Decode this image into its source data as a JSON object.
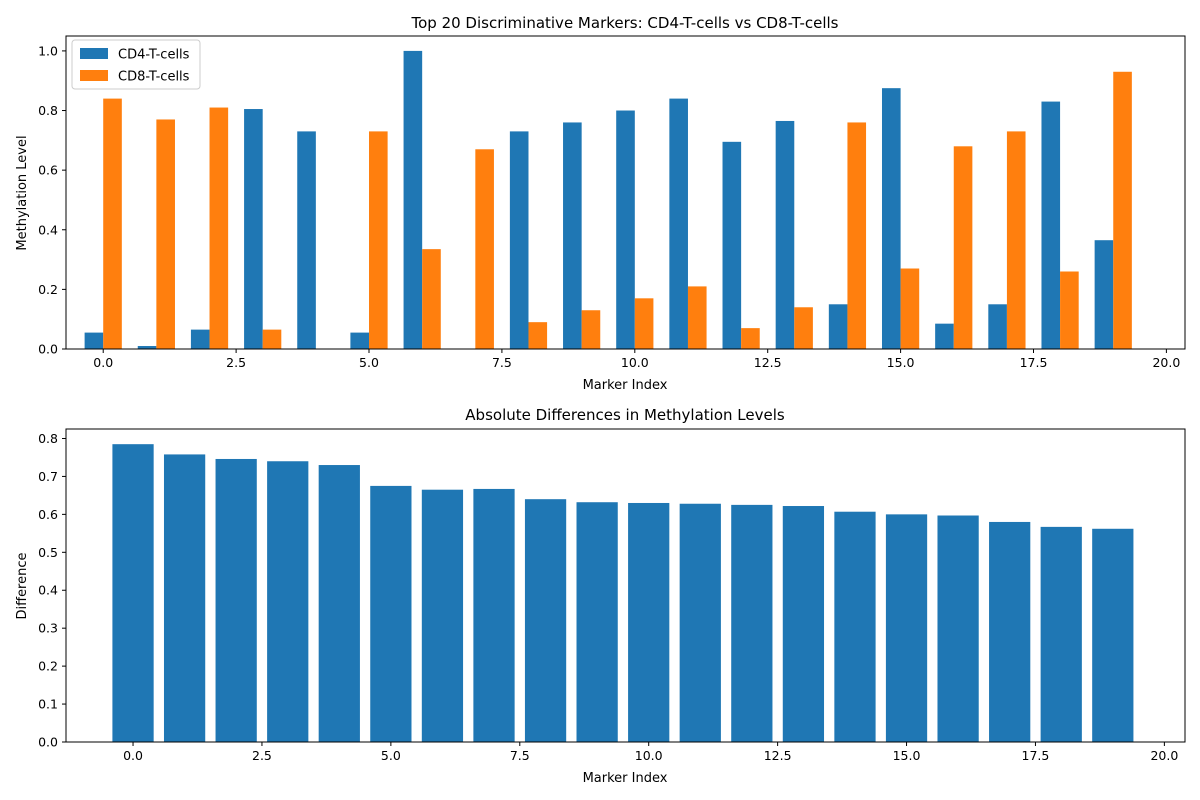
{
  "chart_data": [
    {
      "type": "bar",
      "title": "Top 20 Discriminative Markers: CD4-T-cells vs CD8-T-cells",
      "xlabel": "Marker Index",
      "ylabel": "Methylation Level",
      "xlim": [
        -0.7,
        20.35
      ],
      "ylim": [
        0,
        1.05
      ],
      "xticks": [
        0.0,
        2.5,
        5.0,
        7.5,
        10.0,
        12.5,
        15.0,
        17.5,
        20.0
      ],
      "yticks": [
        0.0,
        0.2,
        0.4,
        0.6,
        0.8,
        1.0
      ],
      "grid": false,
      "legend_position": "top-left",
      "x": [
        0,
        1,
        2,
        3,
        4,
        5,
        6,
        7,
        8,
        9,
        10,
        11,
        12,
        13,
        14,
        15,
        16,
        17,
        18,
        19
      ],
      "series": [
        {
          "name": "CD4-T-cells",
          "color": "#1f77b4",
          "values": [
            0.055,
            0.01,
            0.065,
            0.805,
            0.73,
            0.055,
            1.0,
            0.0,
            0.73,
            0.76,
            0.8,
            0.84,
            0.695,
            0.765,
            0.15,
            0.875,
            0.085,
            0.15,
            0.83,
            0.365
          ]
        },
        {
          "name": "CD8-T-cells",
          "color": "#ff7f0e",
          "values": [
            0.84,
            0.77,
            0.81,
            0.065,
            0.0,
            0.73,
            0.335,
            0.67,
            0.09,
            0.13,
            0.17,
            0.21,
            0.07,
            0.14,
            0.76,
            0.27,
            0.68,
            0.73,
            0.26,
            0.93
          ]
        }
      ]
    },
    {
      "type": "bar",
      "title": "Absolute Differences in Methylation Levels",
      "xlabel": "Marker Index",
      "ylabel": "Difference",
      "xlim": [
        -1.3,
        20.4
      ],
      "ylim": [
        0,
        0.825
      ],
      "xticks": [
        0.0,
        2.5,
        5.0,
        7.5,
        10.0,
        12.5,
        15.0,
        17.5,
        20.0
      ],
      "yticks": [
        0.0,
        0.1,
        0.2,
        0.3,
        0.4,
        0.5,
        0.6,
        0.7,
        0.8
      ],
      "grid": false,
      "x": [
        0,
        1,
        2,
        3,
        4,
        5,
        6,
        7,
        8,
        9,
        10,
        11,
        12,
        13,
        14,
        15,
        16,
        17,
        18,
        19
      ],
      "series": [
        {
          "color": "#1f77b4",
          "values": [
            0.785,
            0.758,
            0.746,
            0.74,
            0.73,
            0.675,
            0.665,
            0.667,
            0.64,
            0.632,
            0.63,
            0.628,
            0.625,
            0.622,
            0.607,
            0.6,
            0.597,
            0.58,
            0.567,
            0.562
          ]
        }
      ]
    }
  ]
}
